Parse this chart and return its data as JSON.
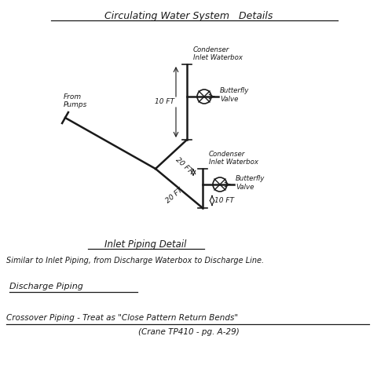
{
  "title": "Circulating Water System   Details",
  "bg_color": "#ffffff",
  "text_color": "#2a2a2a",
  "pipe_color": "#1a1a1a",
  "from_pumps_label": "From\nPumps",
  "condenser_label_top": "Condenser\nInlet Waterbox",
  "condenser_label_bot": "Condenser\nInlet Waterbox",
  "butterfly_label_top": "Butterfly\nValve",
  "butterfly_label_bot": "Butterfly\nValve",
  "label_20ft_top": "20 FT",
  "label_20ft_bot": "20 FT",
  "label_10ft_top": "10 FT",
  "label_10ft_bot": "10 FT",
  "section2_title": "Inlet Piping Detail",
  "section2_body": "Similar to Inlet Piping, from Discharge Waterbox to Discharge Line.",
  "section3_title": "Discharge Piping",
  "section4_title": "Crossover Piping - Treat as \"Close Pattern Return Bends\"",
  "section4_body": "(Crane TP410 - pg. A-29)"
}
